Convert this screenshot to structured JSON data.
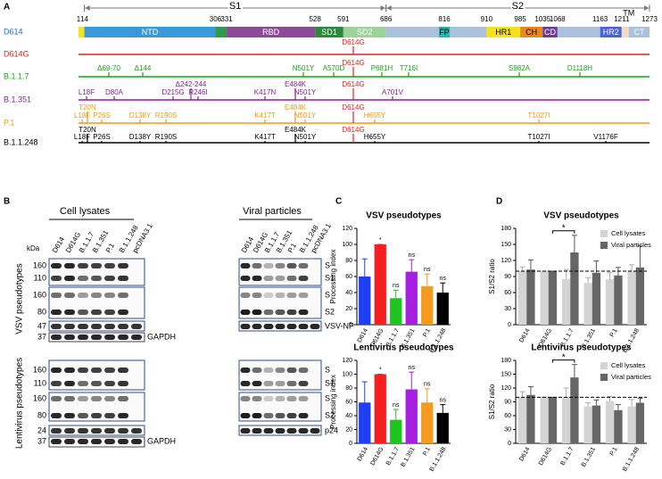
{
  "panel_a": {
    "label": "A",
    "segments": [
      "S1",
      "S2"
    ],
    "positions": [
      1,
      14,
      306,
      331,
      528,
      591,
      686,
      816,
      910,
      985,
      1035,
      1068,
      1163,
      1211,
      1273
    ],
    "domains": [
      "NTD",
      "RBD",
      "SD1",
      "SD2",
      "FP",
      "HR1",
      "CH",
      "CD",
      "HR2",
      "TM",
      "CT"
    ],
    "variants": [
      {
        "name": "D614",
        "color": "#1a6fd6"
      },
      {
        "name": "D614G",
        "color": "#e8201b",
        "mutations": [
          "D614G"
        ]
      },
      {
        "name": "B.1.1.7",
        "color": "#17a517",
        "mutations": [
          "Δ69-70",
          "Δ144",
          "N501Y",
          "A570D",
          "D614G",
          "P681H",
          "T716I",
          "S982A",
          "D1118H"
        ]
      },
      {
        "name": "B.1.351",
        "color": "#8a1f9a",
        "mutations": [
          "L18F",
          "D80A",
          "D215G",
          "Δ242-244",
          "R246I",
          "K417N",
          "E484K",
          "N501Y",
          "D614G",
          "A701V"
        ]
      },
      {
        "name": "P.1",
        "color": "#f39a12",
        "mutations": [
          "T20N",
          "L18F",
          "P26S",
          "D138Y",
          "R190S",
          "K417T",
          "E484K",
          "N501Y",
          "D614G",
          "H655Y",
          "T1027I"
        ]
      },
      {
        "name": "B.1.1.248",
        "color": "#000000",
        "mutations": [
          "T20N",
          "L18F",
          "P26S",
          "D138Y",
          "R190S",
          "K417T",
          "E484K",
          "N501Y",
          "D614G",
          "H655Y",
          "T1027I",
          "V1176F"
        ]
      }
    ]
  },
  "panel_b": {
    "label": "B",
    "groups": [
      "Cell lysates",
      "Viral particles"
    ],
    "lanes": [
      "D614",
      "D614G",
      "B.1.1.7",
      "B.1.351",
      "P.1",
      "B.1.1.248",
      "pcDNA3.1"
    ],
    "unit": "kDa",
    "blots": [
      {
        "name": "VSV pseudotypes",
        "markers": [
          160,
          110,
          160,
          80,
          47,
          37
        ],
        "bands": [
          "S",
          "S1",
          "S",
          "S2",
          "VSV-NP",
          "GAPDH"
        ]
      },
      {
        "name": "Lentivirus pseudotypes",
        "markers": [
          160,
          110,
          160,
          80,
          24,
          37
        ],
        "bands": [
          "S",
          "S1",
          "S",
          "S2",
          "p24",
          "GAPDH"
        ]
      }
    ]
  },
  "panel_c": {
    "label": "C"
  },
  "panel_d": {
    "label": "D"
  },
  "chart_data": [
    {
      "type": "bar",
      "title": "VSV pseudotypes",
      "y_label": "Processing index",
      "categories": [
        "D614",
        "D614G",
        "B.1.1.7",
        "B.1.351",
        "P.1",
        "B.1.1.248"
      ],
      "values": [
        60,
        100,
        33,
        66,
        48,
        40
      ],
      "errors": [
        22,
        0,
        10,
        15,
        15,
        12
      ],
      "colors": [
        "#1f3ff5",
        "#f51f1f",
        "#1fc41f",
        "#a51fe0",
        "#f59a1f",
        "#000000"
      ],
      "annotations": [
        null,
        "*",
        "ns",
        "ns",
        "ns",
        "ns"
      ],
      "ylim": [
        0,
        120
      ],
      "yticks": [
        0,
        20,
        40,
        60,
        80,
        100,
        120
      ]
    },
    {
      "type": "bar",
      "title": "Lentivirus pseudotypes",
      "y_label": "Processing index",
      "categories": [
        "D614",
        "D614G",
        "B.1.1.7",
        "B.1.351",
        "P.1",
        "B.1.1.248"
      ],
      "values": [
        59,
        100,
        34,
        78,
        59,
        44
      ],
      "errors": [
        30,
        0,
        15,
        25,
        20,
        12
      ],
      "colors": [
        "#1f3ff5",
        "#f51f1f",
        "#1fc41f",
        "#a51fe0",
        "#f59a1f",
        "#000000"
      ],
      "annotations": [
        null,
        "*",
        "ns",
        "ns",
        "ns",
        "ns"
      ],
      "ylim": [
        0,
        120
      ],
      "yticks": [
        0,
        20,
        40,
        60,
        80,
        100,
        120
      ]
    },
    {
      "type": "grouped_bar",
      "title": "VSV pseudotypes",
      "y_label": "S1/S2 ratio",
      "categories": [
        "D614",
        "D614G",
        "B.1.1.7",
        "B.1.351",
        "P.1",
        "B.1.1.248"
      ],
      "series": [
        {
          "name": "Cell lysates",
          "color": "#d4d4d4",
          "values": [
            100,
            100,
            85,
            78,
            85,
            100
          ],
          "errors": [
            8,
            0,
            18,
            10,
            12,
            12
          ]
        },
        {
          "name": "Viral particles",
          "color": "#666666",
          "values": [
            103,
            100,
            135,
            97,
            92,
            107
          ],
          "errors": [
            18,
            0,
            32,
            22,
            15,
            40
          ]
        }
      ],
      "reference_line": 100,
      "annotation": "*",
      "legend": "upper-right",
      "ylim": [
        0,
        180
      ],
      "yticks": [
        0,
        30,
        60,
        90,
        120,
        150,
        180
      ]
    },
    {
      "type": "grouped_bar",
      "title": "Lentivirus pseudotypes",
      "y_label": "S1/S2 ratio",
      "categories": [
        "D614",
        "D614G",
        "B.1.1.7",
        "B.1.351",
        "P.1",
        "B.1.1.248"
      ],
      "series": [
        {
          "name": "Cell lysates",
          "color": "#d4d4d4",
          "values": [
            100,
            100,
            100,
            80,
            92,
            80
          ],
          "errors": [
            12,
            0,
            20,
            8,
            10,
            15
          ]
        },
        {
          "name": "Viral particles",
          "color": "#666666",
          "values": [
            105,
            100,
            143,
            82,
            72,
            88
          ],
          "errors": [
            18,
            0,
            28,
            12,
            12,
            10
          ]
        }
      ],
      "reference_line": 100,
      "annotation": "*",
      "legend": "upper-right",
      "ylim": [
        0,
        180
      ],
      "yticks": [
        0,
        30,
        60,
        90,
        120,
        150,
        180
      ]
    }
  ]
}
